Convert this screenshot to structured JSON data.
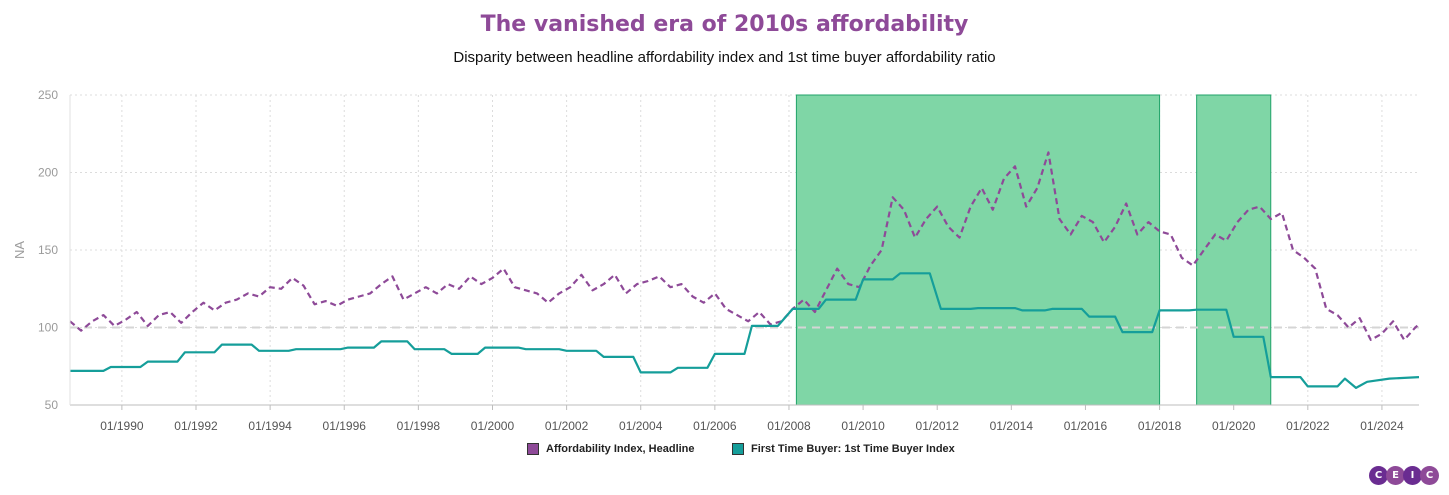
{
  "header": {
    "title": "The vanished era of 2010s affordability",
    "subtitle": "Disparity between headline affordability index and 1st time buyer affordability ratio"
  },
  "logo": {
    "letters": [
      "C",
      "E",
      "I",
      "C"
    ],
    "colors": [
      "#6a2c91",
      "#8e4a98",
      "#6a2c91",
      "#8e4a98"
    ]
  },
  "colors": {
    "title": "#8e4a98",
    "headline": "#8e4a98",
    "first_time": "#159e9a",
    "shade_fill": "#7fd6a6",
    "shade_border": "#22a36a",
    "reference_line": "#d5d5d5"
  },
  "chart_data": {
    "type": "line",
    "title": "The vanished era of 2010s affordability",
    "subtitle": "Disparity between headline affordability index and 1st time buyer affordability ratio",
    "xlabel": "",
    "ylabel": "NA",
    "ylim": [
      50,
      250
    ],
    "yticks": [
      50,
      100,
      150,
      200,
      250
    ],
    "xlim": [
      1988.6,
      2025.0
    ],
    "xticks": [
      "01/1990",
      "01/1992",
      "01/1994",
      "01/1996",
      "01/1998",
      "01/2000",
      "01/2002",
      "01/2004",
      "01/2006",
      "01/2008",
      "01/2010",
      "01/2012",
      "01/2014",
      "01/2016",
      "01/2018",
      "01/2020",
      "01/2022",
      "01/2024"
    ],
    "grid": true,
    "legend_position": "bottom",
    "reference_line": 100,
    "shaded_ranges": [
      [
        2008.2,
        2018.0
      ],
      [
        2019.0,
        2021.0
      ]
    ],
    "series": [
      {
        "name": "Affordability Index, Headline",
        "color": "#8e4a98",
        "style": "dashed",
        "points": [
          [
            1988.6,
            104
          ],
          [
            1988.9,
            98
          ],
          [
            1989.2,
            104
          ],
          [
            1989.5,
            108
          ],
          [
            1989.8,
            101
          ],
          [
            1990.1,
            105
          ],
          [
            1990.4,
            110
          ],
          [
            1990.7,
            101
          ],
          [
            1991.0,
            108
          ],
          [
            1991.3,
            110
          ],
          [
            1991.6,
            103
          ],
          [
            1991.9,
            110
          ],
          [
            1992.2,
            116
          ],
          [
            1992.5,
            111
          ],
          [
            1992.8,
            116
          ],
          [
            1993.1,
            118
          ],
          [
            1993.4,
            122
          ],
          [
            1993.7,
            120
          ],
          [
            1994.0,
            126
          ],
          [
            1994.3,
            125
          ],
          [
            1994.6,
            132
          ],
          [
            1994.9,
            127
          ],
          [
            1995.2,
            115
          ],
          [
            1995.5,
            117
          ],
          [
            1995.8,
            114
          ],
          [
            1996.1,
            118
          ],
          [
            1996.4,
            120
          ],
          [
            1996.7,
            122
          ],
          [
            1997.0,
            128
          ],
          [
            1997.3,
            133
          ],
          [
            1997.6,
            118
          ],
          [
            1997.9,
            122
          ],
          [
            1998.2,
            126
          ],
          [
            1998.5,
            122
          ],
          [
            1998.8,
            128
          ],
          [
            1999.1,
            125
          ],
          [
            1999.4,
            133
          ],
          [
            1999.7,
            128
          ],
          [
            2000.0,
            132
          ],
          [
            2000.3,
            138
          ],
          [
            2000.6,
            126
          ],
          [
            2000.9,
            124
          ],
          [
            2001.2,
            122
          ],
          [
            2001.5,
            116
          ],
          [
            2001.8,
            122
          ],
          [
            2002.1,
            126
          ],
          [
            2002.4,
            134
          ],
          [
            2002.7,
            124
          ],
          [
            2003.0,
            128
          ],
          [
            2003.3,
            134
          ],
          [
            2003.6,
            122
          ],
          [
            2003.9,
            128
          ],
          [
            2004.2,
            130
          ],
          [
            2004.5,
            133
          ],
          [
            2004.8,
            126
          ],
          [
            2005.1,
            128
          ],
          [
            2005.4,
            120
          ],
          [
            2005.7,
            116
          ],
          [
            2006.0,
            122
          ],
          [
            2006.3,
            112
          ],
          [
            2006.6,
            108
          ],
          [
            2006.9,
            104
          ],
          [
            2007.2,
            110
          ],
          [
            2007.5,
            102
          ],
          [
            2007.8,
            104
          ],
          [
            2008.1,
            112
          ],
          [
            2008.4,
            118
          ],
          [
            2008.7,
            110
          ],
          [
            2009.0,
            124
          ],
          [
            2009.3,
            138
          ],
          [
            2009.6,
            128
          ],
          [
            2009.9,
            126
          ],
          [
            2010.2,
            140
          ],
          [
            2010.5,
            150
          ],
          [
            2010.8,
            184
          ],
          [
            2011.1,
            176
          ],
          [
            2011.4,
            158
          ],
          [
            2011.7,
            170
          ],
          [
            2012.0,
            178
          ],
          [
            2012.3,
            165
          ],
          [
            2012.6,
            158
          ],
          [
            2012.9,
            178
          ],
          [
            2013.2,
            190
          ],
          [
            2013.5,
            176
          ],
          [
            2013.8,
            196
          ],
          [
            2014.1,
            204
          ],
          [
            2014.4,
            178
          ],
          [
            2014.7,
            190
          ],
          [
            2015.0,
            213
          ],
          [
            2015.3,
            170
          ],
          [
            2015.6,
            160
          ],
          [
            2015.9,
            172
          ],
          [
            2016.2,
            168
          ],
          [
            2016.5,
            155
          ],
          [
            2016.8,
            165
          ],
          [
            2017.1,
            180
          ],
          [
            2017.4,
            160
          ],
          [
            2017.7,
            168
          ],
          [
            2018.0,
            162
          ],
          [
            2018.3,
            160
          ],
          [
            2018.6,
            145
          ],
          [
            2018.9,
            140
          ],
          [
            2019.2,
            150
          ],
          [
            2019.5,
            160
          ],
          [
            2019.8,
            156
          ],
          [
            2020.1,
            168
          ],
          [
            2020.4,
            176
          ],
          [
            2020.7,
            178
          ],
          [
            2021.0,
            170
          ],
          [
            2021.3,
            174
          ],
          [
            2021.6,
            150
          ],
          [
            2021.9,
            145
          ],
          [
            2022.2,
            138
          ],
          [
            2022.5,
            112
          ],
          [
            2022.8,
            108
          ],
          [
            2023.1,
            100
          ],
          [
            2023.4,
            106
          ],
          [
            2023.7,
            92
          ],
          [
            2024.0,
            96
          ],
          [
            2024.3,
            104
          ],
          [
            2024.6,
            92
          ],
          [
            2024.9,
            100
          ],
          [
            2025.0,
            102
          ]
        ]
      },
      {
        "name": "First Time Buyer: 1st Time Buyer Index",
        "color": "#159e9a",
        "style": "solid",
        "points": [
          [
            1988.6,
            72
          ],
          [
            1989.5,
            72
          ],
          [
            1989.7,
            74.5
          ],
          [
            1990.5,
            74.5
          ],
          [
            1990.7,
            78
          ],
          [
            1991.5,
            78
          ],
          [
            1991.7,
            84
          ],
          [
            1992.5,
            84
          ],
          [
            1992.7,
            89
          ],
          [
            1993.5,
            89
          ],
          [
            1993.7,
            85
          ],
          [
            1994.5,
            85
          ],
          [
            1994.7,
            86
          ],
          [
            1995.9,
            86
          ],
          [
            1996.1,
            87
          ],
          [
            1996.8,
            87
          ],
          [
            1997.0,
            91
          ],
          [
            1997.7,
            91
          ],
          [
            1997.9,
            86
          ],
          [
            1998.7,
            86
          ],
          [
            1998.9,
            83
          ],
          [
            1999.6,
            83
          ],
          [
            1999.8,
            87
          ],
          [
            2000.7,
            87
          ],
          [
            2000.9,
            86
          ],
          [
            2001.8,
            86
          ],
          [
            2002.0,
            85
          ],
          [
            2002.8,
            85
          ],
          [
            2003.0,
            81
          ],
          [
            2003.8,
            81
          ],
          [
            2004.0,
            71
          ],
          [
            2004.8,
            71
          ],
          [
            2005.0,
            74
          ],
          [
            2005.8,
            74
          ],
          [
            2006.0,
            83
          ],
          [
            2006.8,
            83
          ],
          [
            2007.0,
            101
          ],
          [
            2007.7,
            101
          ],
          [
            2008.1,
            112
          ],
          [
            2008.8,
            112
          ],
          [
            2009.0,
            118
          ],
          [
            2009.8,
            118
          ],
          [
            2010.0,
            131
          ],
          [
            2010.8,
            131
          ],
          [
            2011.0,
            135
          ],
          [
            2011.8,
            135
          ],
          [
            2012.1,
            112
          ],
          [
            2012.9,
            112
          ],
          [
            2013.1,
            112.5
          ],
          [
            2014.1,
            112.5
          ],
          [
            2014.3,
            111
          ],
          [
            2014.9,
            111
          ],
          [
            2015.1,
            112
          ],
          [
            2015.9,
            112
          ],
          [
            2016.1,
            107
          ],
          [
            2016.8,
            107
          ],
          [
            2017.0,
            97
          ],
          [
            2017.8,
            97
          ],
          [
            2018.0,
            111
          ],
          [
            2018.8,
            111
          ],
          [
            2019.0,
            111.5
          ],
          [
            2019.8,
            111.5
          ],
          [
            2020.0,
            94
          ],
          [
            2020.8,
            94
          ],
          [
            2021.0,
            68
          ],
          [
            2021.8,
            68
          ],
          [
            2022.0,
            62
          ],
          [
            2022.8,
            62
          ],
          [
            2023.0,
            67
          ],
          [
            2023.3,
            61
          ],
          [
            2023.6,
            65
          ],
          [
            2024.2,
            67
          ],
          [
            2025.0,
            68
          ]
        ]
      }
    ]
  }
}
